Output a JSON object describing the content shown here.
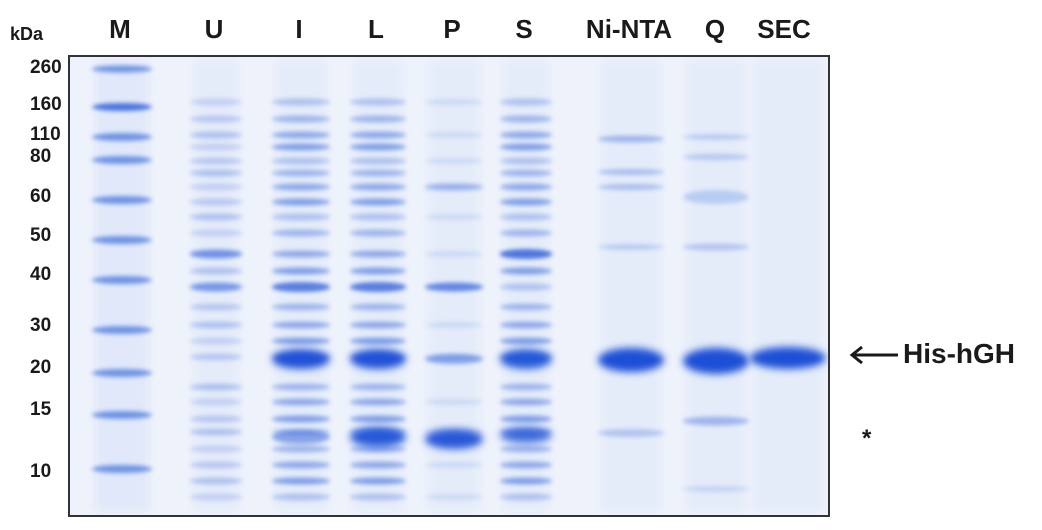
{
  "axis": {
    "unit_label": "kDa"
  },
  "markers": [
    {
      "label": "260",
      "kda": 260
    },
    {
      "label": "160",
      "kda": 160
    },
    {
      "label": "110",
      "kda": 110
    },
    {
      "label": "80",
      "kda": 80
    },
    {
      "label": "60",
      "kda": 60
    },
    {
      "label": "50",
      "kda": 50
    },
    {
      "label": "40",
      "kda": 40
    },
    {
      "label": "30",
      "kda": 30
    },
    {
      "label": "20",
      "kda": 20
    },
    {
      "label": "15",
      "kda": 15
    },
    {
      "label": "10",
      "kda": 10
    }
  ],
  "lanes": [
    {
      "label": "M"
    },
    {
      "label": "U"
    },
    {
      "label": "I"
    },
    {
      "label": "L"
    },
    {
      "label": "P"
    },
    {
      "label": "S"
    },
    {
      "label": "Ni-NTA"
    },
    {
      "label": "Q"
    },
    {
      "label": "SEC"
    }
  ],
  "annotations": {
    "target_label": "His-hGH",
    "target_marker": "←",
    "asterisk": "*"
  },
  "colors": {
    "stain": "#1a4fd6",
    "gel_background": "#eef2fb"
  }
}
